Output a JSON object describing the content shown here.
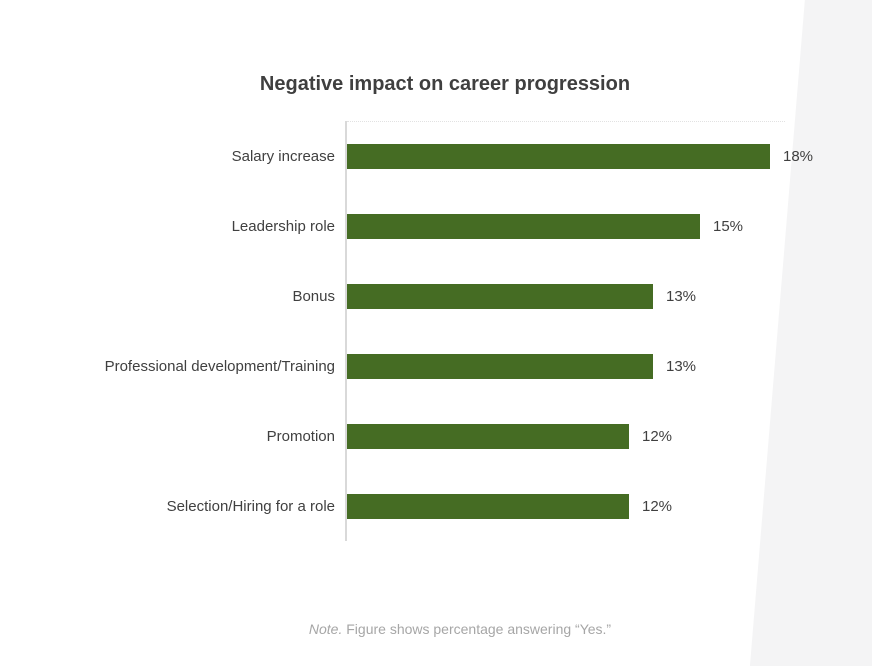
{
  "slide": {
    "background_color": "#ffffff",
    "wedge_color": "#f4f4f5"
  },
  "chart_data": {
    "type": "bar",
    "orientation": "horizontal",
    "title": "Negative impact on career progression",
    "categories": [
      "Salary increase",
      "Leadership role",
      "Bonus",
      "Professional development/Training",
      "Promotion",
      "Selection/Hiring for a role"
    ],
    "values": [
      18,
      15,
      13,
      13,
      12,
      12
    ],
    "value_labels": [
      "18%",
      "15%",
      "13%",
      "13%",
      "12%",
      "12%"
    ],
    "xlabel": "",
    "ylabel": "",
    "xlim": [
      0,
      20
    ],
    "grid": "off",
    "legend": "none",
    "bar_color": "#456c23",
    "axis_color": "#d9d9d9",
    "label_color": "#404040",
    "title_color": "#3f3f3f"
  },
  "note": {
    "prefix": "Note.",
    "text": " Figure shows percentage answering “Yes.”"
  }
}
